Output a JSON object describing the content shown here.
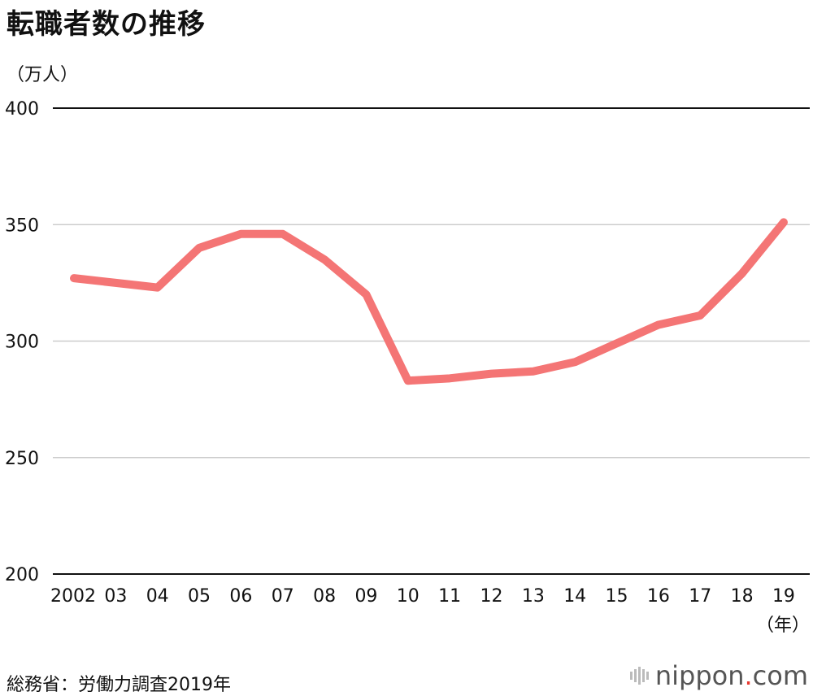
{
  "title": "転職者数の推移",
  "unit_label": "（万人）",
  "source": "総務省：労働力調査2019年",
  "logo": {
    "name": "nippon",
    "dot": ".",
    "tld": "com",
    "accent": "#e8382f"
  },
  "chart_data": {
    "type": "line",
    "title": "転職者数の推移",
    "ylabel": "（万人）",
    "xlabel": "（年）",
    "ylim": [
      200,
      400
    ],
    "yticks": [
      200,
      250,
      300,
      350,
      400
    ],
    "categories": [
      "2002",
      "03",
      "04",
      "05",
      "06",
      "07",
      "08",
      "09",
      "10",
      "11",
      "12",
      "13",
      "14",
      "15",
      "16",
      "17",
      "18",
      "19"
    ],
    "series": [
      {
        "values": [
          327,
          325,
          323,
          340,
          346,
          346,
          335,
          320,
          283,
          284,
          286,
          287,
          291,
          299,
          307,
          311,
          329,
          351
        ],
        "color": "#f47575"
      }
    ],
    "grid": true
  }
}
